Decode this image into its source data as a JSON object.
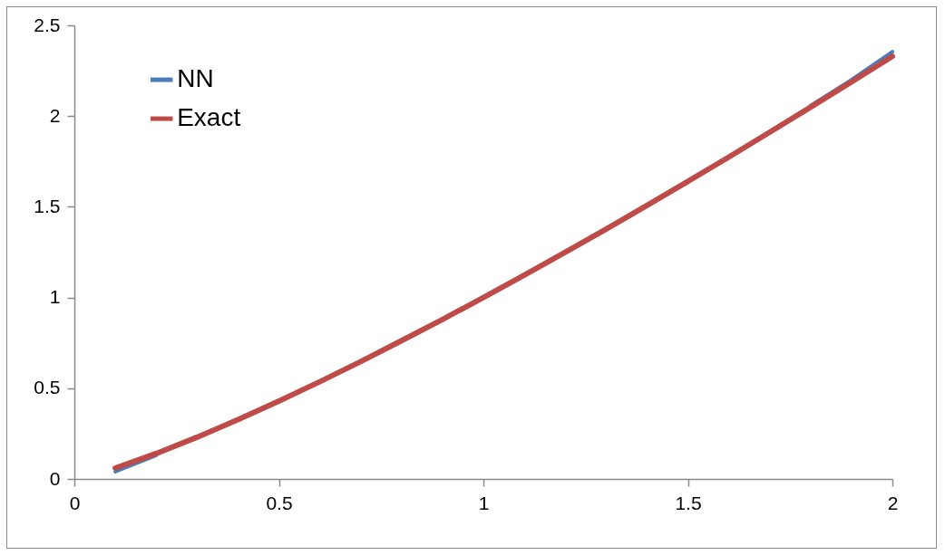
{
  "chart_data": {
    "type": "line",
    "x": [
      0.1,
      0.2,
      0.3,
      0.4,
      0.5,
      0.6,
      0.7,
      0.8,
      0.9,
      1.0,
      1.1,
      1.2,
      1.3,
      1.4,
      1.5,
      1.6,
      1.7,
      1.8,
      1.9,
      2.0
    ],
    "series": [
      {
        "name": "NN",
        "color": "#4a7ebb",
        "values": [
          0.04,
          0.13,
          null,
          null,
          null,
          null,
          null,
          null,
          null,
          null,
          null,
          null,
          null,
          null,
          null,
          null,
          null,
          2.058,
          2.2,
          2.355
        ]
      },
      {
        "name": "Exact",
        "color": "#be4b48",
        "values": [
          0.06,
          0.14,
          0.23,
          0.327,
          0.429,
          0.536,
          0.647,
          0.762,
          0.879,
          1.0,
          1.123,
          1.249,
          1.377,
          1.508,
          1.64,
          1.774,
          1.911,
          2.049,
          2.188,
          2.329
        ]
      }
    ],
    "xlim": [
      0,
      2
    ],
    "xticks": [
      0,
      0.5,
      1,
      1.5,
      2
    ],
    "ylim": [
      0,
      2.5
    ],
    "yticks": [
      0,
      0.5,
      1,
      1.5,
      2,
      2.5
    ],
    "legend": "top left",
    "marker": "none",
    "line_style": "solid"
  }
}
